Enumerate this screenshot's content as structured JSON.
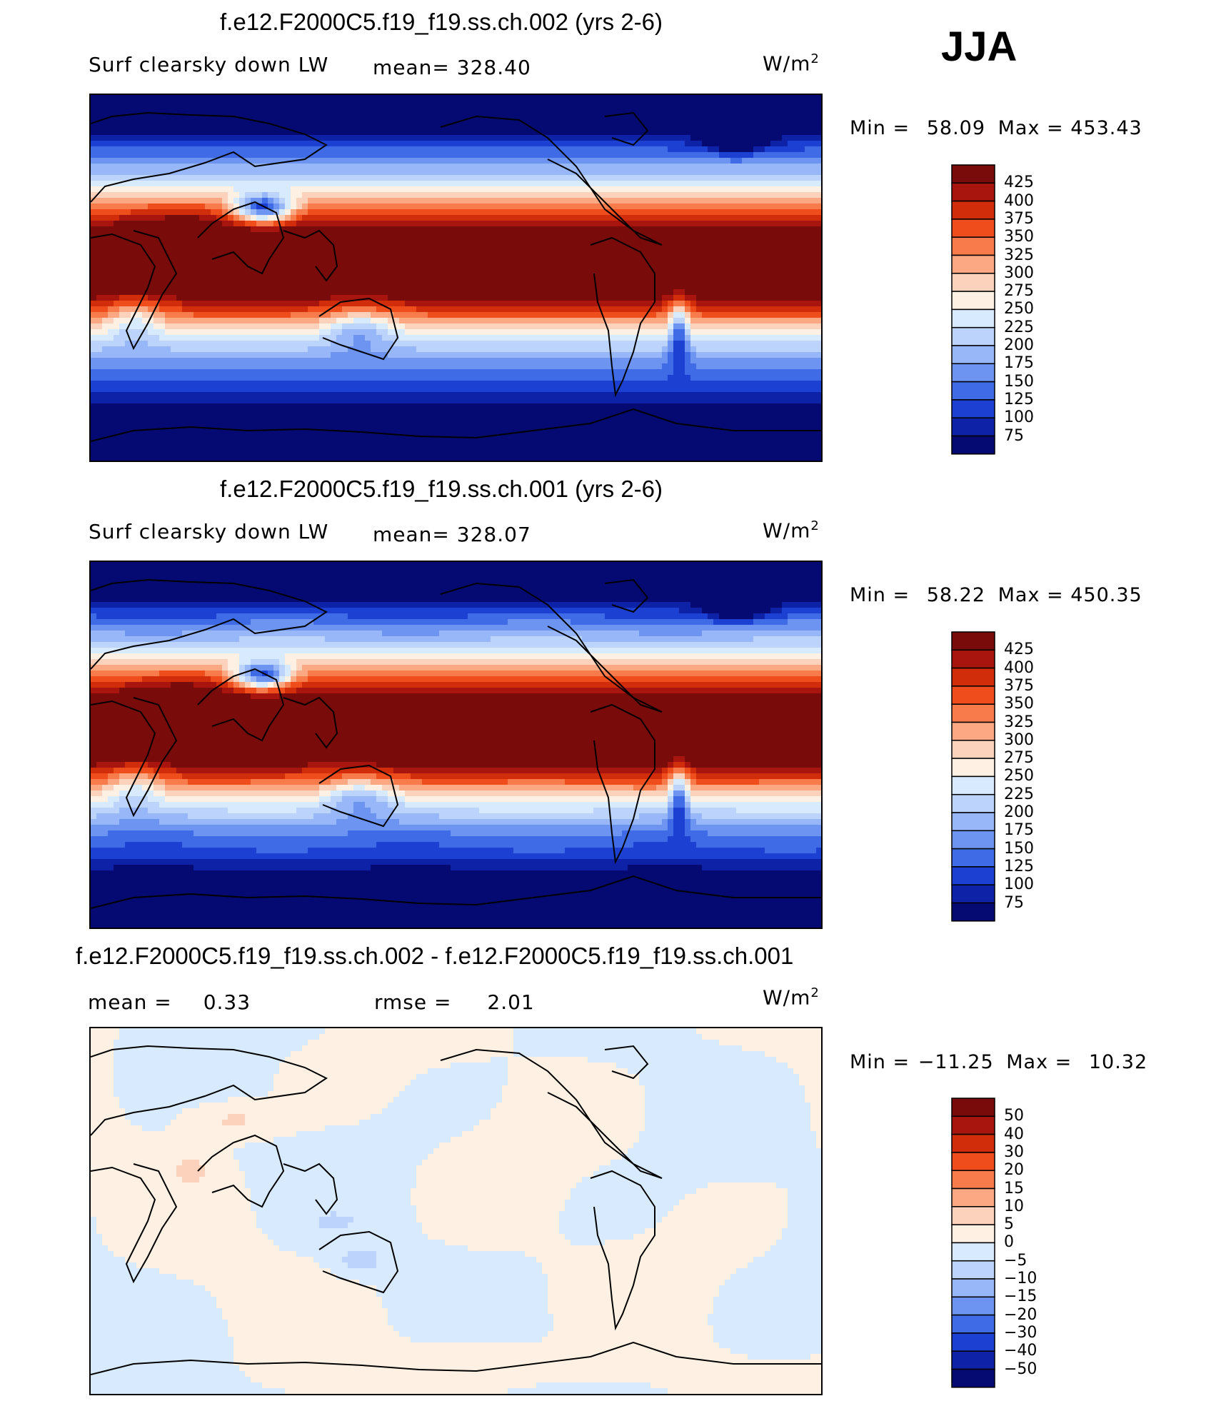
{
  "season": "JJA",
  "chart_data": [
    {
      "type": "heatmap",
      "title": "f.e12.F2000C5.f19_f19.ss.ch.002 (yrs 2-6)",
      "variable": "Surf clearsky down LW",
      "mean_label": "mean=",
      "mean_value": "328.40",
      "units": "W/m",
      "units_exp": "2",
      "min_label": "Min =",
      "min_value": "58.09",
      "max_label": "Max =",
      "max_value": "453.43",
      "levels": [
        "425",
        "400",
        "375",
        "350",
        "325",
        "300",
        "275",
        "250",
        "225",
        "200",
        "175",
        "150",
        "125",
        "100",
        "75"
      ],
      "colors": [
        "#7a0b0b",
        "#a8150e",
        "#d12d0a",
        "#f04d1c",
        "#f77b4b",
        "#fba883",
        "#fdd2bc",
        "#fef1e4",
        "#d8eafd",
        "#bcd4fb",
        "#98b7f8",
        "#6d94f0",
        "#3f6be6",
        "#1b40d2",
        "#0d22a6",
        "#040a72"
      ]
    },
    {
      "type": "heatmap",
      "title": "f.e12.F2000C5.f19_f19.ss.ch.001 (yrs 2-6)",
      "variable": "Surf clearsky down LW",
      "mean_label": "mean=",
      "mean_value": "328.07",
      "units": "W/m",
      "units_exp": "2",
      "min_label": "Min =",
      "min_value": "58.22",
      "max_label": "Max =",
      "max_value": "450.35",
      "levels": [
        "425",
        "400",
        "375",
        "350",
        "325",
        "300",
        "275",
        "250",
        "225",
        "200",
        "175",
        "150",
        "125",
        "100",
        "75"
      ],
      "colors": [
        "#7a0b0b",
        "#a8150e",
        "#d12d0a",
        "#f04d1c",
        "#f77b4b",
        "#fba883",
        "#fdd2bc",
        "#fef1e4",
        "#d8eafd",
        "#bcd4fb",
        "#98b7f8",
        "#6d94f0",
        "#3f6be6",
        "#1b40d2",
        "#0d22a6",
        "#040a72"
      ]
    },
    {
      "type": "heatmap",
      "title": "f.e12.F2000C5.f19_f19.ss.ch.002 - f.e12.F2000C5.f19_f19.ss.ch.001",
      "mean_label": "mean =",
      "mean_value": "0.33",
      "rmse_label": "rmse =",
      "rmse_value": "2.01",
      "units": "W/m",
      "units_exp": "2",
      "min_label": "Min =",
      "min_value": "−11.25",
      "max_label": "Max =",
      "max_value": "10.32",
      "levels": [
        "50",
        "40",
        "30",
        "20",
        "15",
        "10",
        "5",
        "0",
        "−5",
        "−10",
        "−15",
        "−20",
        "−30",
        "−40",
        "−50"
      ],
      "colors": [
        "#7a0b0b",
        "#a8150e",
        "#d12d0a",
        "#f04d1c",
        "#f77b4b",
        "#fba883",
        "#fdd2bc",
        "#fef1e4",
        "#d8eafd",
        "#bcd4fb",
        "#98b7f8",
        "#6d94f0",
        "#3f6be6",
        "#1b40d2",
        "#0d22a6",
        "#040a72"
      ]
    }
  ]
}
